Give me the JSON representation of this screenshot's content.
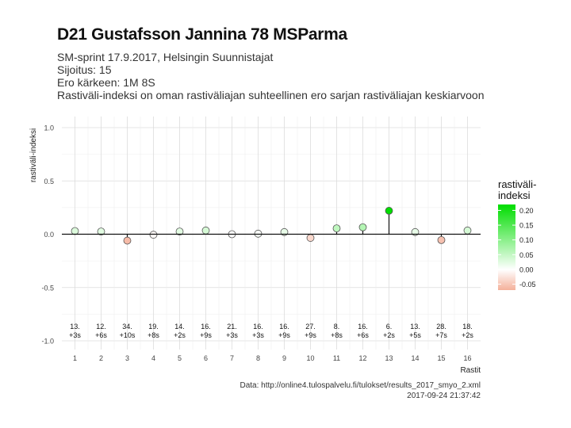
{
  "header": {
    "title": "D21 Gustafsson Jannina 78 MSParma",
    "subtitle_lines": [
      "SM-sprint 17.9.2017, Helsingin Suunnistajat",
      "Sijoitus: 15",
      "Ero kärkeen: 1M 8S",
      "Rastiväli-indeksi on oman rastiväliajan suhteellinen ero sarjan rastiväliajan keskiarvoon"
    ]
  },
  "caption": {
    "source": "Data: http://online4.tulospalvelu.fi/tulokset/results_2017_smyo_2.xml",
    "timestamp": "2017-09-24 21:37:42"
  },
  "chart_data": {
    "type": "scatter",
    "xlabel": "Rastit",
    "ylabel": "rastiväli-indeksi",
    "ylim": [
      -1.0,
      1.0
    ],
    "yticks": [
      -1.0,
      -0.5,
      0.0,
      0.5,
      1.0
    ],
    "ytick_labels": [
      "-1.0",
      "-0.5",
      "0.0",
      "0.5",
      "1.0"
    ],
    "x": [
      1,
      2,
      3,
      4,
      5,
      6,
      7,
      8,
      9,
      10,
      11,
      12,
      13,
      14,
      15,
      16
    ],
    "x_tick_labels": [
      "1",
      "2",
      "3",
      "4",
      "5",
      "6",
      "7",
      "8",
      "9",
      "10",
      "11",
      "12",
      "13",
      "14",
      "15",
      "16"
    ],
    "values": [
      0.03,
      0.025,
      -0.06,
      -0.005,
      0.025,
      0.035,
      0.0,
      0.005,
      0.02,
      -0.035,
      0.055,
      0.065,
      0.22,
      0.02,
      -0.055,
      0.035
    ],
    "rank_labels": [
      "13.",
      "12.",
      "34.",
      "19.",
      "14.",
      "16.",
      "21.",
      "16.",
      "16.",
      "27.",
      "8.",
      "16.",
      "6.",
      "13.",
      "28.",
      "18."
    ],
    "diff_labels": [
      "+3s",
      "+6s",
      "+10s",
      "+8s",
      "+2s",
      "+9s",
      "+3s",
      "+3s",
      "+9s",
      "+9s",
      "+8s",
      "+6s",
      "+2s",
      "+5s",
      "+7s",
      "+2s"
    ],
    "legend": {
      "title_line1": "rastiväli-",
      "title_line2": "indeksi",
      "placement": "right",
      "ticks": [
        0.2,
        0.15,
        0.1,
        0.05,
        0.0,
        -0.05
      ],
      "tick_labels": [
        "0.20",
        "0.15",
        "0.10",
        "0.05",
        "0.00",
        "-0.05"
      ],
      "range": [
        -0.07,
        0.22
      ]
    },
    "grid": true,
    "colors": {
      "positive": "#00dd00",
      "neutral": "#ffffff",
      "negative": "#f4b09a",
      "stem": "#000000",
      "grid": "#e3e3e3"
    }
  }
}
